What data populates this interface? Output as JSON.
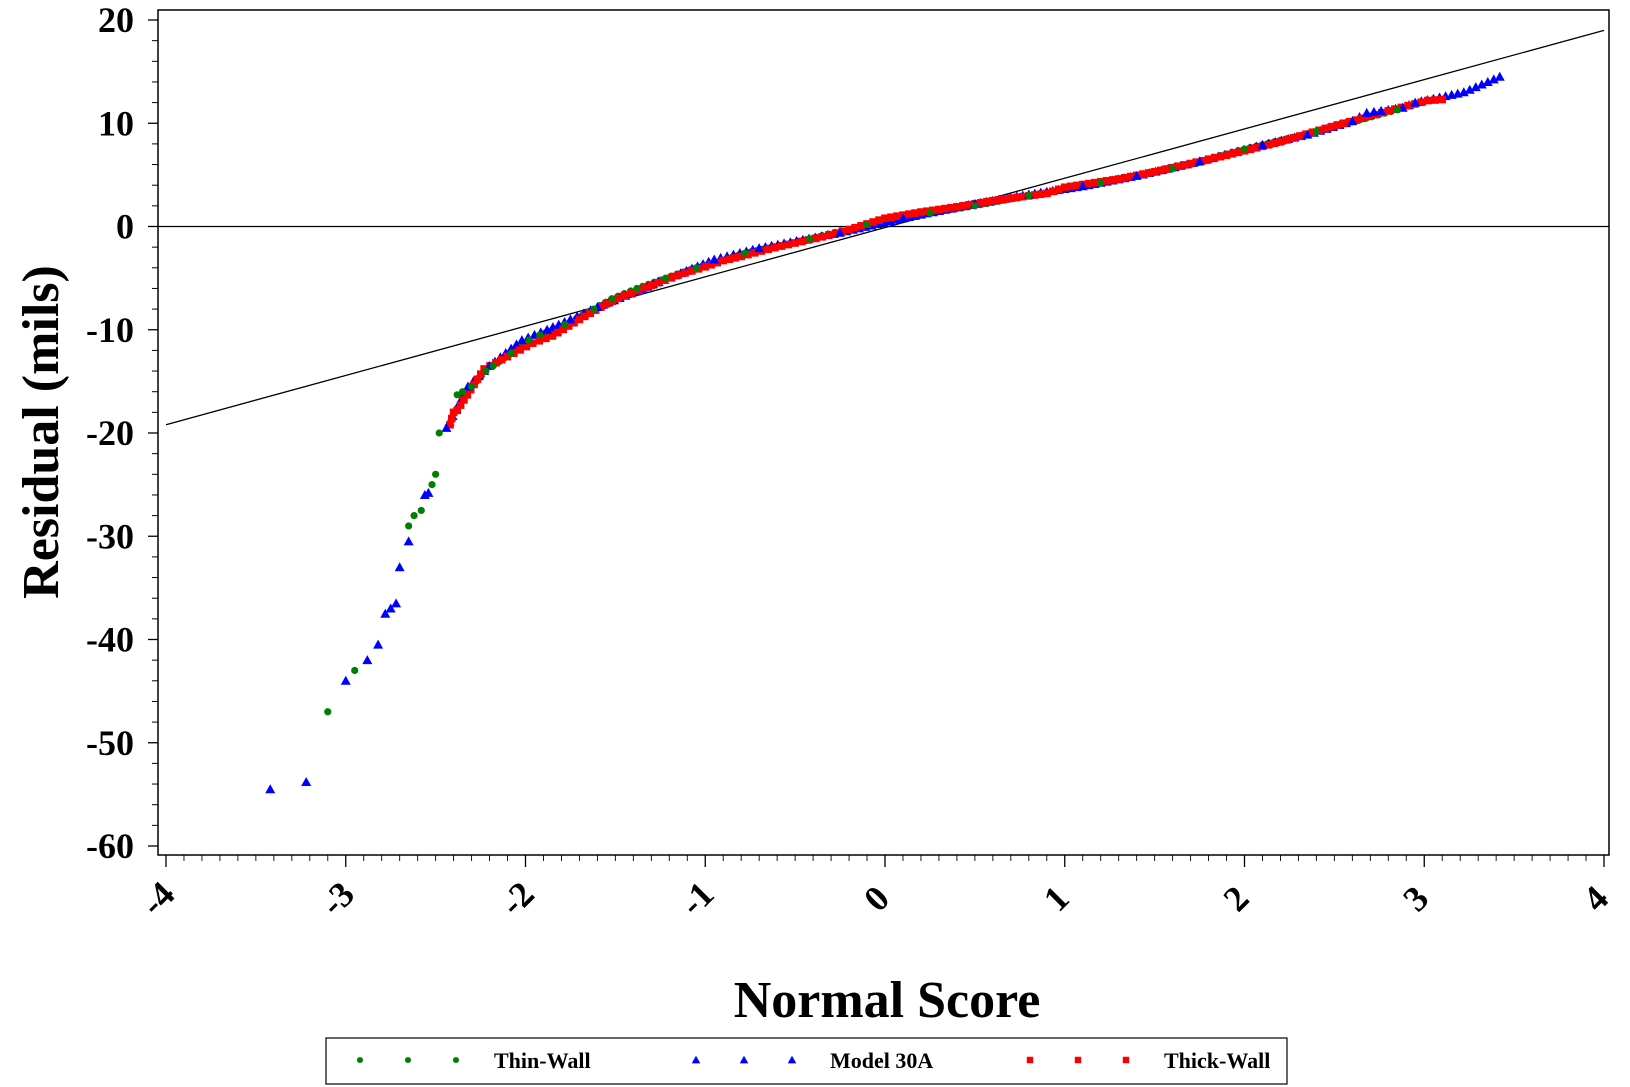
{
  "chart_data": {
    "type": "scatter",
    "title": "",
    "xlabel": "Normal Score",
    "ylabel": "Residual (mils)",
    "xlim": [
      -4,
      4
    ],
    "ylim": [
      -60,
      20
    ],
    "x_ticks": [
      "-4",
      "-3",
      "-2",
      "-1",
      "0",
      "1",
      "2",
      "3",
      "4"
    ],
    "y_ticks": [
      "20",
      "10",
      "0",
      "-10",
      "-20",
      "-30",
      "-40",
      "-50",
      "-60"
    ],
    "grid": false,
    "legend_position": "bottom",
    "reference_lines": [
      {
        "kind": "horizontal",
        "y": 0
      },
      {
        "kind": "fit",
        "x": [
          -4,
          4
        ],
        "y": [
          -19.2,
          19.0
        ]
      }
    ],
    "series": [
      {
        "name": "Thin-Wall",
        "marker": "dot",
        "color": "#008000",
        "points": [
          [
            -3.1,
            -47.0
          ],
          [
            -2.95,
            -43.0
          ],
          [
            -2.65,
            -29.0
          ],
          [
            -2.62,
            -28.0
          ],
          [
            -2.58,
            -27.5
          ],
          [
            -2.52,
            -25.0
          ],
          [
            -2.5,
            -24.0
          ],
          [
            -2.48,
            -20.0
          ],
          [
            -2.38,
            -16.3
          ],
          [
            -2.35,
            -16.0
          ],
          [
            -2.3,
            -15.5
          ],
          [
            -2.22,
            -14.0
          ],
          [
            -2.18,
            -13.5
          ],
          [
            -2.08,
            -12.3
          ],
          [
            -1.98,
            -11.0
          ],
          [
            -1.92,
            -10.5
          ],
          [
            -1.78,
            -9.5
          ],
          [
            -1.62,
            -8.0
          ],
          [
            -1.52,
            -7.0
          ],
          [
            -1.38,
            -6.0
          ],
          [
            -1.22,
            -5.0
          ],
          [
            -1.05,
            -4.0
          ],
          [
            -0.78,
            -2.6
          ],
          [
            -0.42,
            -1.2
          ],
          [
            -0.1,
            0.2
          ],
          [
            0.25,
            1.3
          ],
          [
            0.5,
            2.0
          ],
          [
            0.8,
            3.0
          ],
          [
            1.2,
            4.2
          ],
          [
            1.6,
            5.6
          ],
          [
            2.0,
            7.5
          ],
          [
            2.4,
            9.2
          ],
          [
            2.85,
            11.3
          ]
        ]
      },
      {
        "name": "Model 30A",
        "marker": "triangle",
        "color": "#0000ff",
        "points": [
          [
            -3.42,
            -54.5
          ],
          [
            -3.22,
            -53.8
          ],
          [
            -3.0,
            -44.0
          ],
          [
            -2.88,
            -42.0
          ],
          [
            -2.82,
            -40.5
          ],
          [
            -2.78,
            -37.5
          ],
          [
            -2.75,
            -37.0
          ],
          [
            -2.72,
            -36.5
          ],
          [
            -2.7,
            -33.0
          ],
          [
            -2.65,
            -30.5
          ],
          [
            -2.56,
            -26.0
          ],
          [
            -2.54,
            -25.8
          ],
          [
            -2.44,
            -19.5
          ],
          [
            -2.32,
            -15.5
          ],
          [
            -2.2,
            -13.5
          ],
          [
            -2.02,
            -11.0
          ],
          [
            -1.88,
            -10.0
          ],
          [
            -1.75,
            -9.0
          ],
          [
            -1.6,
            -7.8
          ],
          [
            -0.95,
            -3.2
          ],
          [
            -0.7,
            -2.1
          ],
          [
            -0.25,
            -0.6
          ],
          [
            0.1,
            0.8
          ],
          [
            0.5,
            2.2
          ],
          [
            0.8,
            3.1
          ],
          [
            1.1,
            3.9
          ],
          [
            1.4,
            4.9
          ],
          [
            1.75,
            6.3
          ],
          [
            2.1,
            7.9
          ],
          [
            2.35,
            8.9
          ],
          [
            2.6,
            10.2
          ],
          [
            2.68,
            11.0
          ],
          [
            2.72,
            11.1
          ],
          [
            2.76,
            11.2
          ],
          [
            2.88,
            11.5
          ],
          [
            2.95,
            12.0
          ],
          [
            3.22,
            13.0
          ],
          [
            3.42,
            14.5
          ]
        ]
      },
      {
        "name": "Thick-Wall",
        "marker": "square",
        "color": "#ff0000",
        "points": [
          [
            -2.42,
            -19.2
          ],
          [
            -2.4,
            -18.0
          ],
          [
            -2.38,
            -17.8
          ],
          [
            -2.23,
            -13.8
          ],
          [
            -2.1,
            -12.6
          ],
          [
            -1.96,
            -11.3
          ],
          [
            -1.85,
            -10.6
          ],
          [
            -1.7,
            -9.0
          ],
          [
            -1.55,
            -7.5
          ],
          [
            -1.45,
            -6.7
          ],
          [
            -1.3,
            -5.7
          ],
          [
            -1.15,
            -4.7
          ],
          [
            -1.0,
            -3.9
          ],
          [
            -0.9,
            -3.3
          ],
          [
            -0.8,
            -2.9
          ],
          [
            -0.65,
            -2.2
          ],
          [
            -0.5,
            -1.6
          ],
          [
            -0.35,
            -1.0
          ],
          [
            -0.2,
            -0.3
          ],
          [
            0.0,
            0.8
          ],
          [
            0.2,
            1.4
          ],
          [
            0.4,
            1.9
          ],
          [
            0.6,
            2.5
          ],
          [
            0.9,
            3.2
          ],
          [
            1.0,
            3.8
          ],
          [
            1.3,
            4.6
          ],
          [
            1.5,
            5.3
          ],
          [
            1.7,
            6.1
          ],
          [
            1.9,
            6.9
          ],
          [
            2.2,
            8.2
          ],
          [
            2.45,
            9.5
          ],
          [
            2.55,
            10.0
          ],
          [
            2.62,
            10.3
          ],
          [
            2.8,
            11.2
          ],
          [
            3.02,
            12.2
          ],
          [
            3.1,
            12.3
          ]
        ]
      }
    ]
  }
}
